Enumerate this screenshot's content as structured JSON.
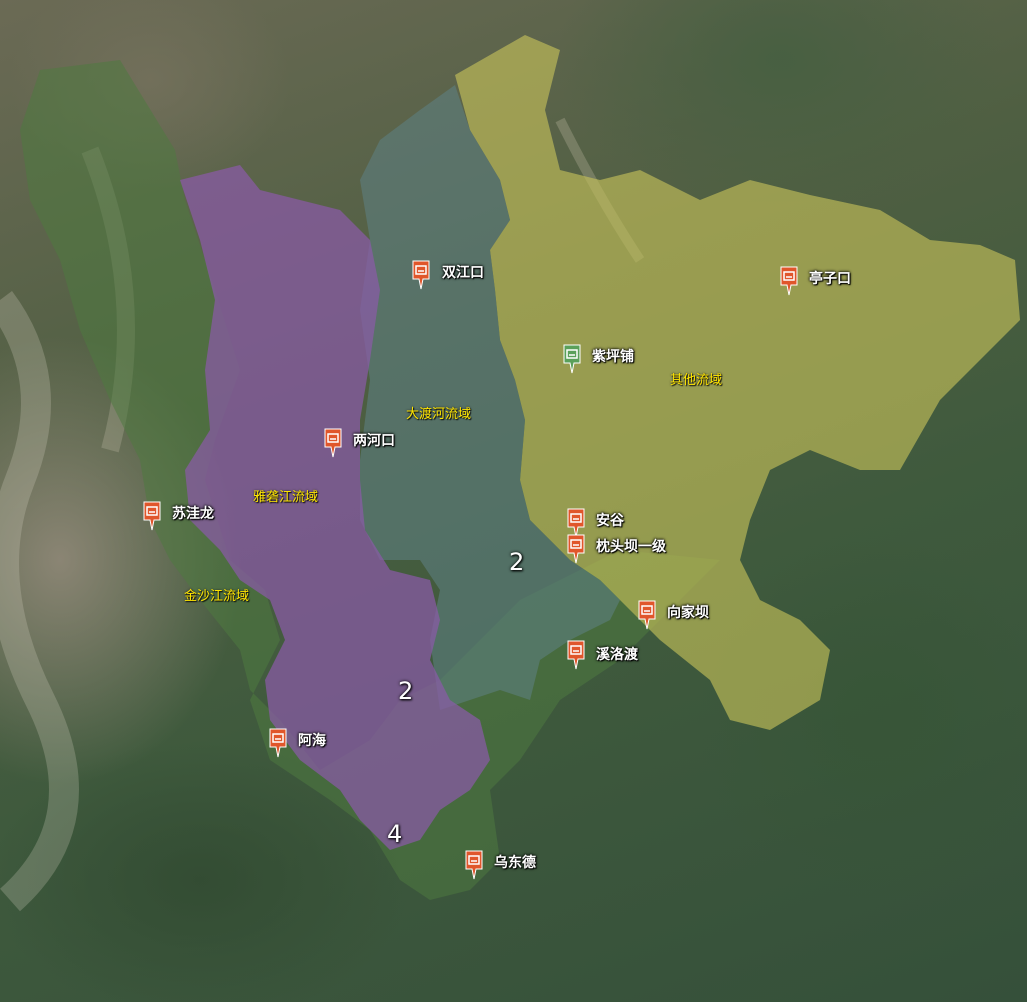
{
  "colors": {
    "station_marker": "#e0562b",
    "station_marker_special": "#5aa05a",
    "region_label": "#ffe600",
    "basin_other": "#c8c45a",
    "basin_dadu": "#5e7f80",
    "basin_yalong": "#8a5aa8",
    "basin_jinsha": "#4f7a3f"
  },
  "basins": [
    {
      "id": "other",
      "label": "其他流域"
    },
    {
      "id": "dadu",
      "label": "大渡河流域"
    },
    {
      "id": "yalong",
      "label": "雅砻江流域"
    },
    {
      "id": "jinsha",
      "label": "金沙江流域"
    }
  ],
  "stations": [
    {
      "id": "shuangjiangkou",
      "name": "双江口",
      "icon": "hydropower-station-icon"
    },
    {
      "id": "tingzikou",
      "name": "亭子口",
      "icon": "hydropower-station-icon"
    },
    {
      "id": "zipingpu",
      "name": "紫坪铺",
      "icon": "hydropower-station-icon"
    },
    {
      "id": "lianghekou",
      "name": "两河口",
      "icon": "hydropower-station-icon"
    },
    {
      "id": "suwalong",
      "name": "苏洼龙",
      "icon": "hydropower-station-icon"
    },
    {
      "id": "angu",
      "name": "安谷",
      "icon": "hydropower-station-icon"
    },
    {
      "id": "zhentouba",
      "name": "枕头坝一级",
      "icon": "hydropower-station-icon"
    },
    {
      "id": "xiangjiaba",
      "name": "向家坝",
      "icon": "hydropower-station-icon"
    },
    {
      "id": "xiluodu",
      "name": "溪洛渡",
      "icon": "hydropower-station-icon"
    },
    {
      "id": "ahai",
      "name": "阿海",
      "icon": "hydropower-station-icon"
    },
    {
      "id": "wudongde",
      "name": "乌东德",
      "icon": "hydropower-station-icon"
    }
  ],
  "clusters": [
    {
      "id": "c1",
      "count": "2"
    },
    {
      "id": "c2",
      "count": "2"
    },
    {
      "id": "c3",
      "count": "4"
    }
  ]
}
